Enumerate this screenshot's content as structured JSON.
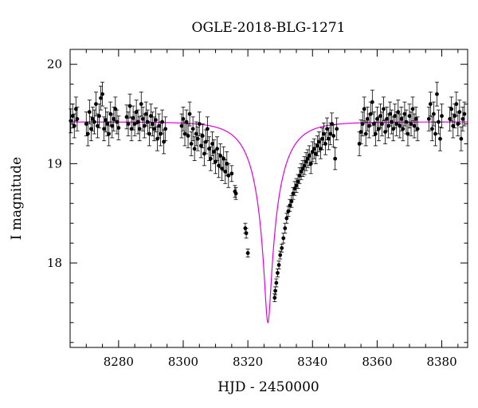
{
  "chart_data": {
    "type": "scatter",
    "title": "OGLE-2018-BLG-1271",
    "xlabel": "HJD - 2450000",
    "ylabel": "I magnitude",
    "xlim": [
      8265,
      8388
    ],
    "ylim": [
      20.15,
      17.15
    ],
    "y_inverted": true,
    "x_ticks": [
      8280,
      8300,
      8320,
      8340,
      8360,
      8380
    ],
    "y_ticks": [
      18,
      19,
      20
    ],
    "x_minor_step": 5,
    "y_minor_step": 0.2,
    "grid": false,
    "series": [
      {
        "type": "errorbar",
        "color": "#000000",
        "points": [
          [
            8265.2,
            19.43,
            0.12
          ],
          [
            8265.8,
            19.48,
            0.12
          ],
          [
            8266.3,
            19.38,
            0.12
          ],
          [
            8266.8,
            19.55,
            0.12
          ],
          [
            8267.2,
            19.45,
            0.12
          ],
          [
            8270.0,
            19.4,
            0.12
          ],
          [
            8270.5,
            19.3,
            0.12
          ],
          [
            8271.0,
            19.52,
            0.12
          ],
          [
            8271.5,
            19.35,
            0.12
          ],
          [
            8272.0,
            19.45,
            0.12
          ],
          [
            8272.5,
            19.42,
            0.12
          ],
          [
            8273.0,
            19.6,
            0.12
          ],
          [
            8273.5,
            19.38,
            0.12
          ],
          [
            8274.0,
            19.48,
            0.12
          ],
          [
            8274.5,
            19.66,
            0.12
          ],
          [
            8275.0,
            19.7,
            0.12
          ],
          [
            8275.5,
            19.35,
            0.12
          ],
          [
            8276.0,
            19.44,
            0.12
          ],
          [
            8276.5,
            19.4,
            0.12
          ],
          [
            8277.0,
            19.3,
            0.12
          ],
          [
            8277.5,
            19.5,
            0.12
          ],
          [
            8278.0,
            19.38,
            0.12
          ],
          [
            8278.5,
            19.45,
            0.12
          ],
          [
            8279.0,
            19.55,
            0.12
          ],
          [
            8279.5,
            19.42,
            0.12
          ],
          [
            8280.0,
            19.36,
            0.12
          ],
          [
            8282.5,
            19.47,
            0.12
          ],
          [
            8283.0,
            19.4,
            0.12
          ],
          [
            8283.5,
            19.58,
            0.12
          ],
          [
            8284.0,
            19.35,
            0.12
          ],
          [
            8284.5,
            19.46,
            0.12
          ],
          [
            8285.0,
            19.4,
            0.12
          ],
          [
            8285.5,
            19.52,
            0.12
          ],
          [
            8286.0,
            19.42,
            0.12
          ],
          [
            8286.5,
            19.35,
            0.12
          ],
          [
            8287.0,
            19.6,
            0.12
          ],
          [
            8287.5,
            19.45,
            0.12
          ],
          [
            8288.0,
            19.38,
            0.12
          ],
          [
            8288.5,
            19.5,
            0.12
          ],
          [
            8289.0,
            19.42,
            0.12
          ],
          [
            8289.5,
            19.3,
            0.12
          ],
          [
            8290.0,
            19.48,
            0.12
          ],
          [
            8290.5,
            19.4,
            0.12
          ],
          [
            8291.0,
            19.35,
            0.12
          ],
          [
            8291.5,
            19.44,
            0.12
          ],
          [
            8292.0,
            19.25,
            0.12
          ],
          [
            8292.5,
            19.38,
            0.12
          ],
          [
            8293.0,
            19.3,
            0.12
          ],
          [
            8293.5,
            19.42,
            0.12
          ],
          [
            8294.0,
            19.22,
            0.12
          ],
          [
            8294.5,
            19.35,
            0.12
          ],
          [
            8299.5,
            19.38,
            0.12
          ],
          [
            8300.0,
            19.45,
            0.12
          ],
          [
            8300.5,
            19.3,
            0.12
          ],
          [
            8301.0,
            19.42,
            0.12
          ],
          [
            8301.5,
            19.28,
            0.12
          ],
          [
            8302.0,
            19.5,
            0.12
          ],
          [
            8302.5,
            19.2,
            0.12
          ],
          [
            8303.0,
            19.35,
            0.12
          ],
          [
            8303.5,
            19.15,
            0.12
          ],
          [
            8304.0,
            19.3,
            0.12
          ],
          [
            8304.5,
            19.25,
            0.12
          ],
          [
            8305.0,
            19.4,
            0.12
          ],
          [
            8305.5,
            19.18,
            0.12
          ],
          [
            8306.0,
            19.28,
            0.12
          ],
          [
            8306.5,
            19.1,
            0.12
          ],
          [
            8307.0,
            19.22,
            0.12
          ],
          [
            8307.5,
            19.35,
            0.12
          ],
          [
            8308.0,
            19.15,
            0.12
          ],
          [
            8308.5,
            19.05,
            0.12
          ],
          [
            8309.0,
            19.2,
            0.12
          ],
          [
            8309.5,
            19.12,
            0.12
          ],
          [
            8310.0,
            19.02,
            0.12
          ],
          [
            8310.5,
            19.15,
            0.12
          ],
          [
            8311.0,
            18.98,
            0.12
          ],
          [
            8311.5,
            19.08,
            0.12
          ],
          [
            8312.0,
            18.95,
            0.12
          ],
          [
            8312.5,
            19.05,
            0.12
          ],
          [
            8313.0,
            18.92,
            0.12
          ],
          [
            8313.5,
            19.0,
            0.12
          ],
          [
            8314.0,
            18.88,
            0.12
          ],
          [
            8315.0,
            18.9,
            0.08
          ],
          [
            8316.0,
            18.72,
            0.06
          ],
          [
            8316.3,
            18.7,
            0.06
          ],
          [
            8319.2,
            18.35,
            0.05
          ],
          [
            8319.5,
            18.3,
            0.05
          ],
          [
            8320.0,
            18.1,
            0.04
          ],
          [
            8328.3,
            17.65,
            0.04
          ],
          [
            8328.5,
            17.72,
            0.04
          ],
          [
            8328.8,
            17.8,
            0.04
          ],
          [
            8329.2,
            17.9,
            0.04
          ],
          [
            8329.6,
            17.98,
            0.04
          ],
          [
            8330.0,
            18.08,
            0.04
          ],
          [
            8330.5,
            18.15,
            0.04
          ],
          [
            8331.0,
            18.25,
            0.05
          ],
          [
            8331.5,
            18.35,
            0.05
          ],
          [
            8332.0,
            18.45,
            0.05
          ],
          [
            8332.5,
            18.52,
            0.05
          ],
          [
            8333.0,
            18.58,
            0.06
          ],
          [
            8333.5,
            18.62,
            0.06
          ],
          [
            8334.0,
            18.7,
            0.06
          ],
          [
            8334.5,
            18.75,
            0.07
          ],
          [
            8335.0,
            18.78,
            0.07
          ],
          [
            8335.5,
            18.82,
            0.07
          ],
          [
            8336.0,
            18.88,
            0.08
          ],
          [
            8336.5,
            18.92,
            0.08
          ],
          [
            8337.0,
            18.95,
            0.08
          ],
          [
            8337.5,
            18.98,
            0.09
          ],
          [
            8338.0,
            19.02,
            0.09
          ],
          [
            8338.5,
            19.05,
            0.09
          ],
          [
            8339.0,
            19.08,
            0.1
          ],
          [
            8339.5,
            19.0,
            0.1
          ],
          [
            8340.0,
            19.12,
            0.1
          ],
          [
            8340.5,
            19.15,
            0.1
          ],
          [
            8341.0,
            19.1,
            0.1
          ],
          [
            8341.5,
            19.18,
            0.1
          ],
          [
            8342.0,
            19.22,
            0.1
          ],
          [
            8342.5,
            19.15,
            0.1
          ],
          [
            8343.0,
            19.25,
            0.11
          ],
          [
            8343.5,
            19.3,
            0.11
          ],
          [
            8344.0,
            19.2,
            0.11
          ],
          [
            8344.5,
            19.35,
            0.11
          ],
          [
            8345.0,
            19.25,
            0.11
          ],
          [
            8345.5,
            19.3,
            0.11
          ],
          [
            8346.0,
            19.4,
            0.11
          ],
          [
            8346.5,
            19.28,
            0.11
          ],
          [
            8347.0,
            19.05,
            0.11
          ],
          [
            8347.5,
            19.35,
            0.11
          ],
          [
            8354.5,
            19.2,
            0.12
          ],
          [
            8355.0,
            19.32,
            0.12
          ],
          [
            8355.5,
            19.4,
            0.12
          ],
          [
            8356.0,
            19.55,
            0.12
          ],
          [
            8356.5,
            19.3,
            0.12
          ],
          [
            8357.0,
            19.45,
            0.12
          ],
          [
            8357.5,
            19.38,
            0.12
          ],
          [
            8358.0,
            19.5,
            0.12
          ],
          [
            8358.5,
            19.62,
            0.12
          ],
          [
            8359.0,
            19.4,
            0.12
          ],
          [
            8359.5,
            19.3,
            0.12
          ],
          [
            8360.0,
            19.45,
            0.12
          ],
          [
            8360.5,
            19.35,
            0.12
          ],
          [
            8361.0,
            19.48,
            0.12
          ],
          [
            8361.5,
            19.4,
            0.12
          ],
          [
            8362.0,
            19.55,
            0.12
          ],
          [
            8362.5,
            19.32,
            0.12
          ],
          [
            8363.0,
            19.45,
            0.12
          ],
          [
            8363.5,
            19.38,
            0.12
          ],
          [
            8364.0,
            19.5,
            0.12
          ],
          [
            8364.5,
            19.42,
            0.12
          ],
          [
            8365.0,
            19.35,
            0.12
          ],
          [
            8365.5,
            19.48,
            0.12
          ],
          [
            8366.0,
            19.4,
            0.12
          ],
          [
            8366.5,
            19.52,
            0.12
          ],
          [
            8367.0,
            19.38,
            0.12
          ],
          [
            8367.5,
            19.45,
            0.12
          ],
          [
            8368.0,
            19.35,
            0.12
          ],
          [
            8368.5,
            19.5,
            0.12
          ],
          [
            8369.0,
            19.42,
            0.12
          ],
          [
            8369.5,
            19.3,
            0.12
          ],
          [
            8370.0,
            19.48,
            0.12
          ],
          [
            8370.5,
            19.4,
            0.12
          ],
          [
            8371.0,
            19.55,
            0.12
          ],
          [
            8371.5,
            19.38,
            0.12
          ],
          [
            8372.0,
            19.45,
            0.12
          ],
          [
            8372.5,
            19.35,
            0.12
          ],
          [
            8376.0,
            19.45,
            0.12
          ],
          [
            8376.5,
            19.6,
            0.12
          ],
          [
            8377.0,
            19.35,
            0.12
          ],
          [
            8377.5,
            19.5,
            0.12
          ],
          [
            8378.0,
            19.3,
            0.12
          ],
          [
            8378.5,
            19.7,
            0.12
          ],
          [
            8379.0,
            19.42,
            0.12
          ],
          [
            8379.5,
            19.25,
            0.12
          ],
          [
            8380.0,
            19.48,
            0.12
          ],
          [
            8382.5,
            19.45,
            0.12
          ],
          [
            8383.0,
            19.55,
            0.12
          ],
          [
            8383.5,
            19.38,
            0.12
          ],
          [
            8384.0,
            19.48,
            0.12
          ],
          [
            8384.5,
            19.6,
            0.12
          ],
          [
            8385.0,
            19.4,
            0.12
          ],
          [
            8385.5,
            19.52,
            0.12
          ],
          [
            8386.0,
            19.25,
            0.12
          ],
          [
            8386.5,
            19.45,
            0.12
          ],
          [
            8387.0,
            19.5,
            0.12
          ]
        ]
      },
      {
        "type": "line",
        "color": "#e000e0",
        "model": {
          "t0": 8326.2,
          "tE": 9.0,
          "u0": 0.1,
          "baseline": 19.42,
          "blend_fraction": 0.6
        },
        "x_range": [
          8265,
          8388
        ]
      }
    ]
  }
}
